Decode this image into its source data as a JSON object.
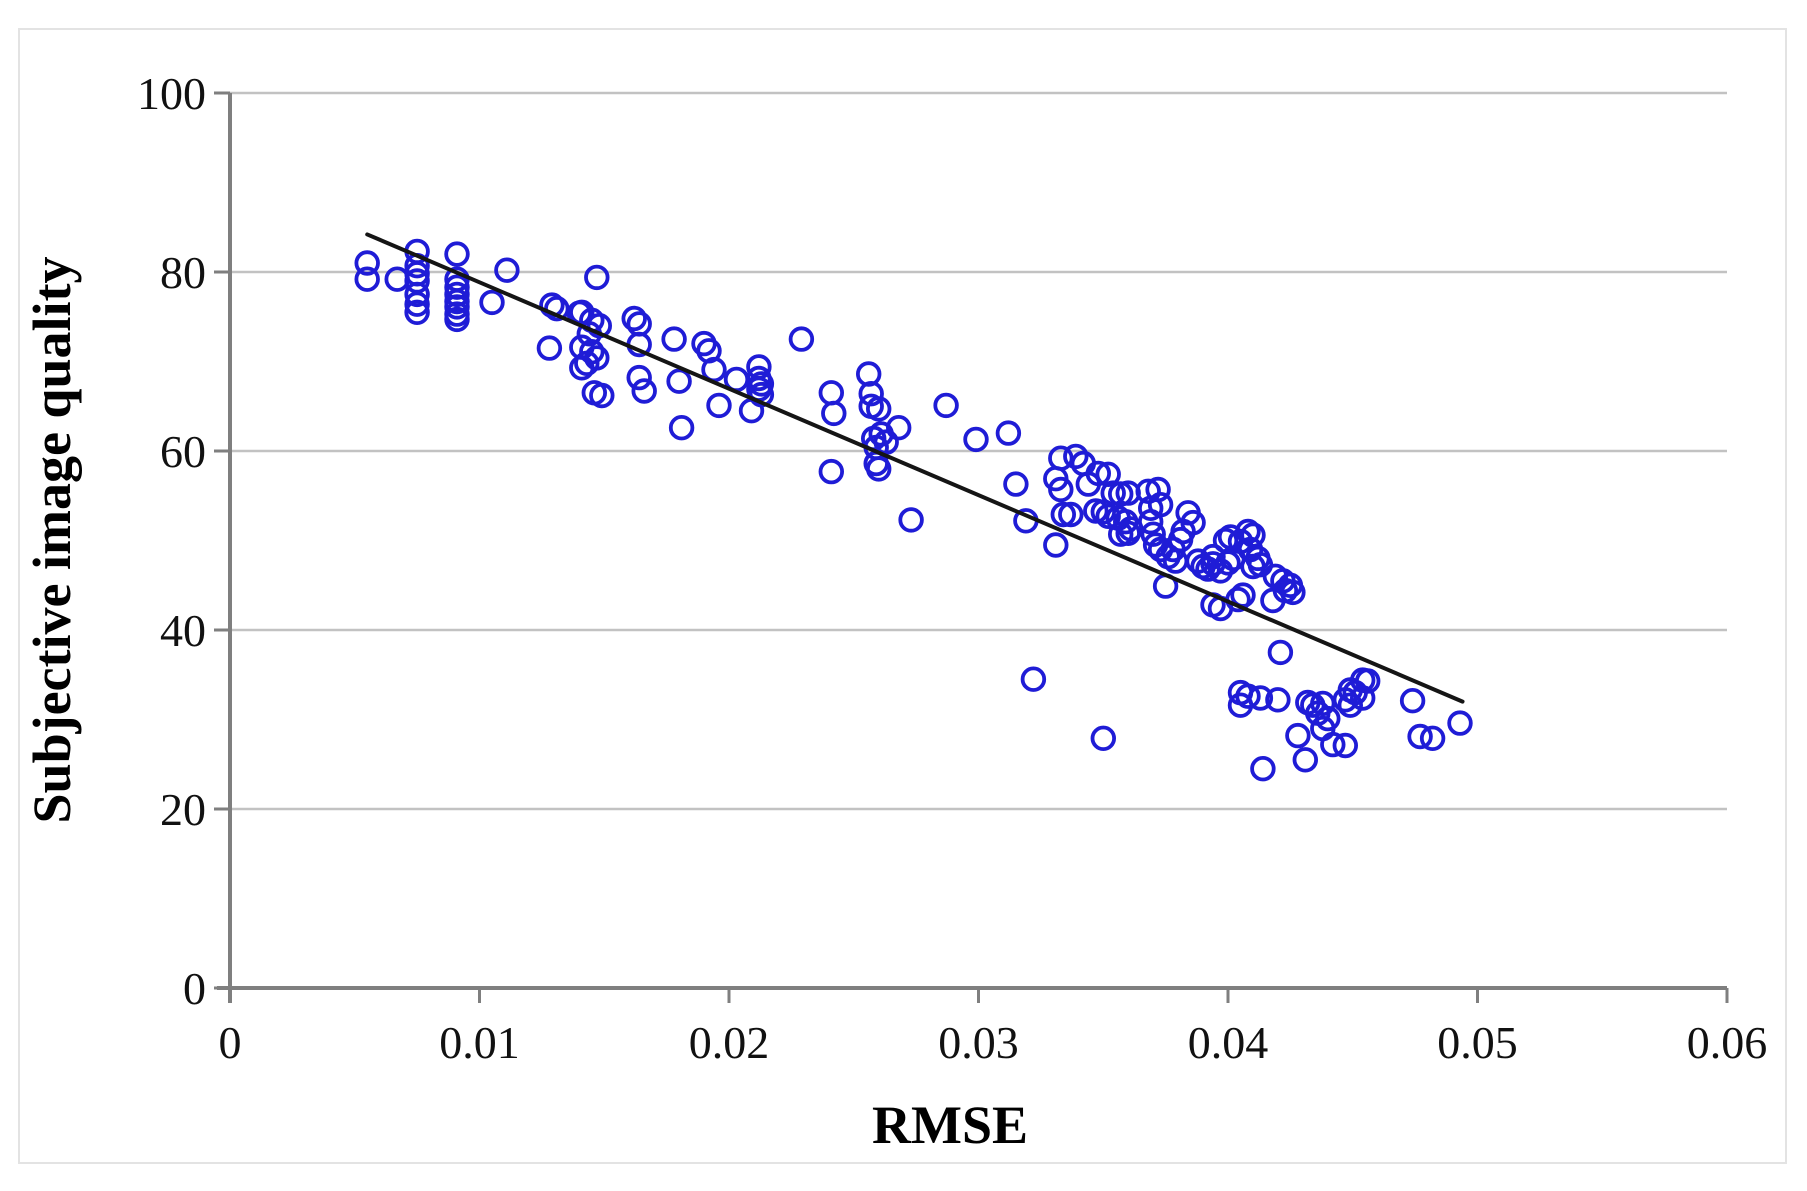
{
  "chart_data": {
    "type": "scatter",
    "title": "",
    "xlabel": "RMSE",
    "ylabel": "Subjective image quality",
    "xlim": [
      0,
      0.06
    ],
    "ylim": [
      0,
      100
    ],
    "x_ticks": [
      {
        "value": 0,
        "label": "0"
      },
      {
        "value": 0.01,
        "label": "0.01"
      },
      {
        "value": 0.02,
        "label": "0.02"
      },
      {
        "value": 0.03,
        "label": "0.03"
      },
      {
        "value": 0.04,
        "label": "0.04"
      },
      {
        "value": 0.05,
        "label": "0.05"
      },
      {
        "value": 0.06,
        "label": "0.06"
      }
    ],
    "y_ticks": [
      {
        "value": 0,
        "label": "0"
      },
      {
        "value": 20,
        "label": "20"
      },
      {
        "value": 40,
        "label": "40"
      },
      {
        "value": 60,
        "label": "60"
      },
      {
        "value": 80,
        "label": "80"
      },
      {
        "value": 100,
        "label": "100"
      }
    ],
    "grid": "horizontal",
    "legend": "none",
    "marker": {
      "shape": "open-circle",
      "color": "#1f1cd6",
      "radius": 10.8,
      "stroke_width": 3.8
    },
    "trend_line": {
      "x1": 0.0055,
      "y1": 84.2,
      "x2": 0.0494,
      "y2": 32.0,
      "color": "#151515",
      "width": 4
    },
    "points": [
      [
        0.0055,
        81.0
      ],
      [
        0.0055,
        79.2
      ],
      [
        0.0067,
        79.2
      ],
      [
        0.0075,
        82.3
      ],
      [
        0.0075,
        80.7
      ],
      [
        0.0075,
        79.8
      ],
      [
        0.0075,
        79.0
      ],
      [
        0.0075,
        77.5
      ],
      [
        0.0075,
        76.4
      ],
      [
        0.0075,
        75.5
      ],
      [
        0.0091,
        82.0
      ],
      [
        0.0091,
        79.2
      ],
      [
        0.0091,
        78.3
      ],
      [
        0.0091,
        77.5
      ],
      [
        0.0091,
        76.7
      ],
      [
        0.0091,
        76.1
      ],
      [
        0.0091,
        75.3
      ],
      [
        0.0091,
        74.7
      ],
      [
        0.0105,
        76.6
      ],
      [
        0.0111,
        80.2
      ],
      [
        0.0129,
        76.3
      ],
      [
        0.0131,
        75.9
      ],
      [
        0.0128,
        71.5
      ],
      [
        0.014,
        75.4
      ],
      [
        0.0141,
        75.5
      ],
      [
        0.0145,
        74.6
      ],
      [
        0.0148,
        74.0
      ],
      [
        0.0144,
        73.1
      ],
      [
        0.0147,
        79.4
      ],
      [
        0.0141,
        71.6
      ],
      [
        0.0145,
        71.1
      ],
      [
        0.0147,
        70.4
      ],
      [
        0.0143,
        69.8
      ],
      [
        0.0141,
        69.3
      ],
      [
        0.0146,
        66.5
      ],
      [
        0.0149,
        66.2
      ],
      [
        0.0162,
        74.8
      ],
      [
        0.0164,
        74.2
      ],
      [
        0.0164,
        71.9
      ],
      [
        0.0164,
        68.2
      ],
      [
        0.0166,
        66.7
      ],
      [
        0.0178,
        72.5
      ],
      [
        0.018,
        67.8
      ],
      [
        0.0181,
        62.6
      ],
      [
        0.019,
        72.0
      ],
      [
        0.0192,
        71.2
      ],
      [
        0.0194,
        69.1
      ],
      [
        0.0196,
        65.1
      ],
      [
        0.0203,
        68.0
      ],
      [
        0.0209,
        64.5
      ],
      [
        0.0212,
        69.4
      ],
      [
        0.0212,
        68.1
      ],
      [
        0.0213,
        67.5
      ],
      [
        0.0212,
        66.9
      ],
      [
        0.0213,
        66.3
      ],
      [
        0.0229,
        72.5
      ],
      [
        0.0241,
        66.5
      ],
      [
        0.0242,
        64.2
      ],
      [
        0.0241,
        57.7
      ],
      [
        0.0256,
        68.6
      ],
      [
        0.0257,
        66.4
      ],
      [
        0.0257,
        65.0
      ],
      [
        0.026,
        64.7
      ],
      [
        0.0261,
        61.9
      ],
      [
        0.0258,
        61.4
      ],
      [
        0.0263,
        61.0
      ],
      [
        0.0259,
        60.4
      ],
      [
        0.0259,
        58.6
      ],
      [
        0.026,
        58.0
      ],
      [
        0.0268,
        62.6
      ],
      [
        0.0273,
        52.3
      ],
      [
        0.0287,
        65.1
      ],
      [
        0.0299,
        61.3
      ],
      [
        0.0312,
        62.0
      ],
      [
        0.0315,
        56.3
      ],
      [
        0.0319,
        52.2
      ],
      [
        0.0322,
        34.5
      ],
      [
        0.0333,
        59.2
      ],
      [
        0.0339,
        59.4
      ],
      [
        0.0342,
        58.6
      ],
      [
        0.0331,
        56.9
      ],
      [
        0.0333,
        55.7
      ],
      [
        0.0334,
        52.9
      ],
      [
        0.0337,
        52.9
      ],
      [
        0.0331,
        49.5
      ],
      [
        0.0344,
        56.3
      ],
      [
        0.0348,
        57.5
      ],
      [
        0.0352,
        57.4
      ],
      [
        0.0347,
        53.3
      ],
      [
        0.035,
        53.2
      ],
      [
        0.0352,
        52.7
      ],
      [
        0.0356,
        52.5
      ],
      [
        0.0359,
        52.1
      ],
      [
        0.0361,
        51.3
      ],
      [
        0.0357,
        50.7
      ],
      [
        0.036,
        50.8
      ],
      [
        0.0354,
        55.3
      ],
      [
        0.0357,
        55.2
      ],
      [
        0.036,
        55.3
      ],
      [
        0.035,
        27.9
      ],
      [
        0.0368,
        55.5
      ],
      [
        0.0372,
        55.7
      ],
      [
        0.0373,
        54.0
      ],
      [
        0.0369,
        53.6
      ],
      [
        0.0369,
        52.1
      ],
      [
        0.037,
        50.7
      ],
      [
        0.0371,
        49.5
      ],
      [
        0.0373,
        49.0
      ],
      [
        0.0378,
        49.0
      ],
      [
        0.0376,
        48.2
      ],
      [
        0.0379,
        47.7
      ],
      [
        0.0381,
        50.1
      ],
      [
        0.0382,
        51.0
      ],
      [
        0.0384,
        53.1
      ],
      [
        0.0386,
        52.0
      ],
      [
        0.0375,
        44.9
      ],
      [
        0.0388,
        47.7
      ],
      [
        0.039,
        47.1
      ],
      [
        0.0392,
        46.8
      ],
      [
        0.0394,
        47.4
      ],
      [
        0.0397,
        46.6
      ],
      [
        0.0394,
        48.2
      ],
      [
        0.04,
        47.5
      ],
      [
        0.0402,
        48.0
      ],
      [
        0.0399,
        50.0
      ],
      [
        0.0401,
        50.4
      ],
      [
        0.0394,
        42.8
      ],
      [
        0.0397,
        42.4
      ],
      [
        0.0404,
        43.4
      ],
      [
        0.0406,
        43.9
      ],
      [
        0.0418,
        43.3
      ],
      [
        0.0408,
        51.0
      ],
      [
        0.041,
        50.6
      ],
      [
        0.0405,
        49.9
      ],
      [
        0.0409,
        49.0
      ],
      [
        0.041,
        47.1
      ],
      [
        0.0412,
        48.0
      ],
      [
        0.0413,
        47.3
      ],
      [
        0.0419,
        46.0
      ],
      [
        0.0422,
        45.5
      ],
      [
        0.0425,
        45.0
      ],
      [
        0.0423,
        44.4
      ],
      [
        0.0426,
        44.2
      ],
      [
        0.0421,
        37.5
      ],
      [
        0.0405,
        33.0
      ],
      [
        0.0408,
        32.6
      ],
      [
        0.0413,
        32.4
      ],
      [
        0.0405,
        31.6
      ],
      [
        0.0414,
        24.5
      ],
      [
        0.042,
        32.2
      ],
      [
        0.0428,
        28.2
      ],
      [
        0.0431,
        25.5
      ],
      [
        0.0438,
        29.0
      ],
      [
        0.0442,
        27.2
      ],
      [
        0.0447,
        27.1
      ],
      [
        0.0434,
        31.6
      ],
      [
        0.0436,
        30.7
      ],
      [
        0.044,
        30.1
      ],
      [
        0.0438,
        31.8
      ],
      [
        0.0432,
        31.9
      ],
      [
        0.0447,
        32.2
      ],
      [
        0.0449,
        31.6
      ],
      [
        0.0454,
        32.4
      ],
      [
        0.0451,
        33.0
      ],
      [
        0.0454,
        34.4
      ],
      [
        0.0456,
        34.3
      ],
      [
        0.0449,
        33.3
      ],
      [
        0.0474,
        32.1
      ],
      [
        0.0477,
        28.1
      ],
      [
        0.0482,
        27.9
      ],
      [
        0.0493,
        29.6
      ]
    ]
  },
  "styles": {
    "background": "#ffffff",
    "gridline_color": "#c2c2c2",
    "axis_color": "#7f7f7f",
    "figure_border_color": "#e3e3e3",
    "text_color": "#111111"
  }
}
